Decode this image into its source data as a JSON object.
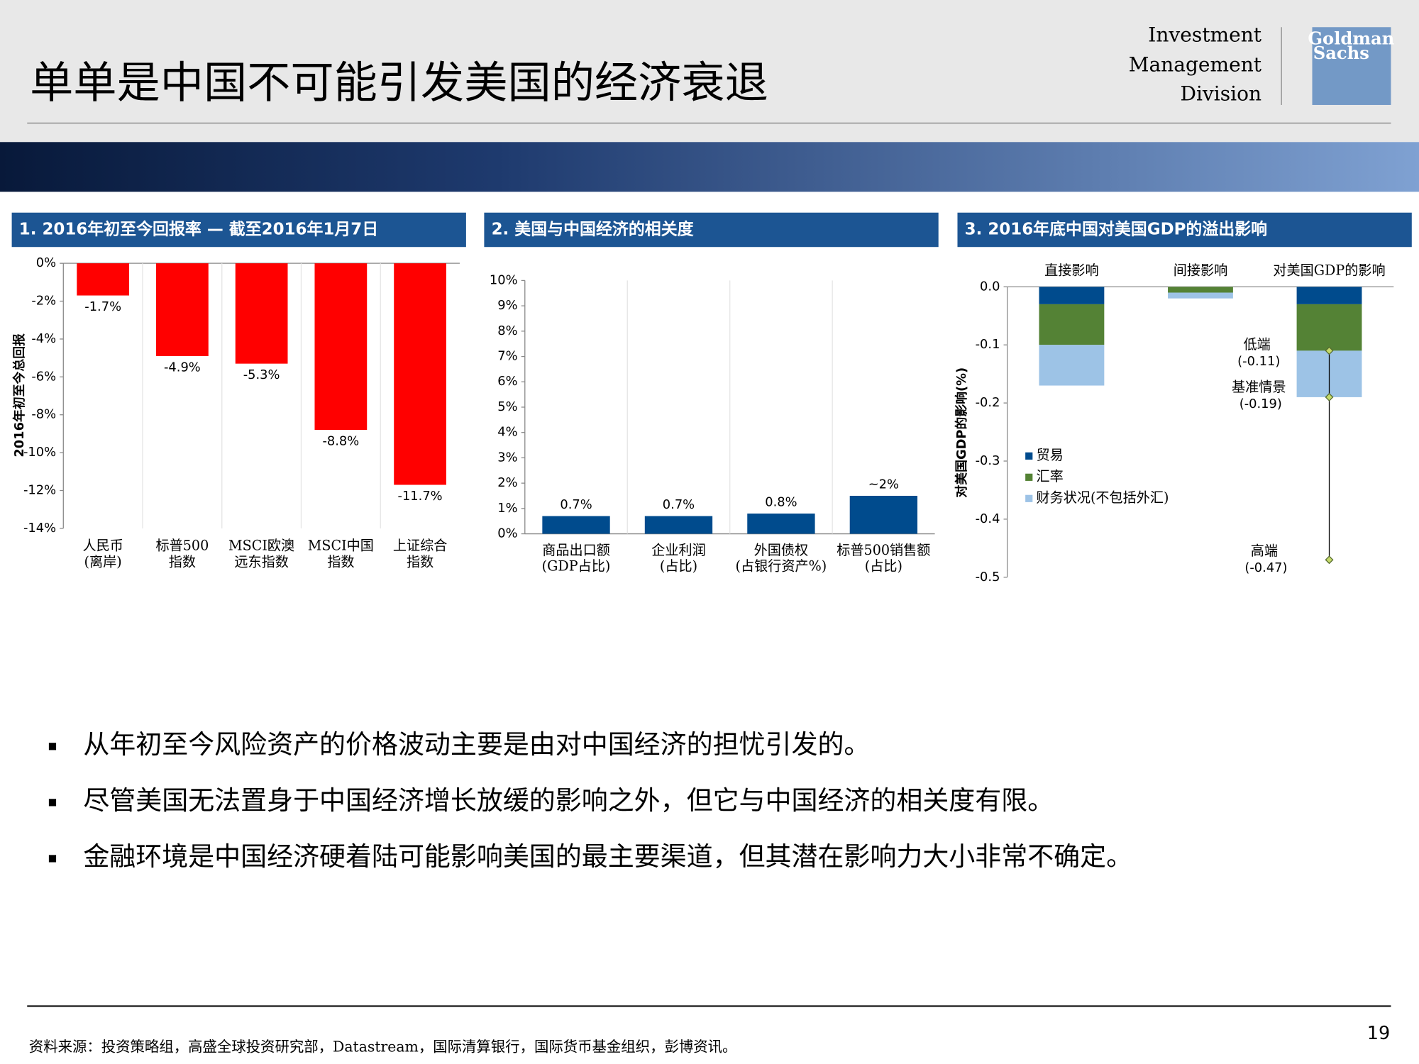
{
  "header": {
    "title": "单单是中国不可能引发美国的经济衰退",
    "division": [
      "Investment",
      "Management",
      "Division"
    ],
    "logo": [
      "Goldman",
      "Sachs"
    ]
  },
  "chart_data": [
    {
      "type": "bar",
      "title": "1. 2016年初至今回报率 — 截至2016年1月7日",
      "y_label": "2016年初至今总回报",
      "categories": [
        [
          "人民币",
          "(离岸)"
        ],
        [
          "标普500",
          "指数"
        ],
        [
          "MSCI欧澳",
          "远东指数"
        ],
        [
          "MSCI中国",
          "指数"
        ],
        [
          "上证综合",
          "指数"
        ]
      ],
      "values": [
        -1.7,
        -4.9,
        -5.3,
        -8.8,
        -11.7
      ],
      "value_labels": [
        "-1.7%",
        "-4.9%",
        "-5.3%",
        "-8.8%",
        "-11.7%"
      ],
      "color": "#ff0000",
      "ylim": [
        -14,
        0
      ],
      "yticks": [
        {
          "value": 0,
          "label": "0%"
        },
        {
          "value": -2,
          "label": "-2%"
        },
        {
          "value": -4,
          "label": "-4%"
        },
        {
          "value": -6,
          "label": "-6%"
        },
        {
          "value": -8,
          "label": "-8%"
        },
        {
          "value": -10,
          "label": "-10%"
        },
        {
          "value": -12,
          "label": "-12%"
        },
        {
          "value": -14,
          "label": "-14%"
        }
      ],
      "grid": false
    },
    {
      "type": "bar",
      "title": "2. 美国与中国经济的相关度",
      "categories": [
        [
          "商品出口额",
          "(GDP占比)"
        ],
        [
          "企业利润",
          "(占比)"
        ],
        [
          "外国债权",
          "(占银行资产%)"
        ],
        [
          "标普500销售额",
          "(占比)"
        ]
      ],
      "values": [
        0.7,
        0.7,
        0.8,
        1.5
      ],
      "value_labels": [
        "0.7%",
        "0.7%",
        "0.8%",
        "~2%"
      ],
      "color": "#004b8d",
      "ylim": [
        0,
        10
      ],
      "yticks": [
        {
          "value": 0,
          "label": "0%"
        },
        {
          "value": 1,
          "label": "1%"
        },
        {
          "value": 2,
          "label": "2%"
        },
        {
          "value": 3,
          "label": "3%"
        },
        {
          "value": 4,
          "label": "4%"
        },
        {
          "value": 5,
          "label": "5%"
        },
        {
          "value": 6,
          "label": "6%"
        },
        {
          "value": 7,
          "label": "7%"
        },
        {
          "value": 8,
          "label": "8%"
        },
        {
          "value": 9,
          "label": "9%"
        },
        {
          "value": 10,
          "label": "10%"
        }
      ],
      "grid": false
    },
    {
      "type": "stacked_bar",
      "title": "3. 2016年底中国对美国GDP的溢出影响",
      "y_label": "对美国GDP的影响(%)",
      "categories": [
        "直接影响",
        "间接影响",
        "对美国GDP的影响"
      ],
      "series": [
        {
          "name": "贸易",
          "color": "#004b8d",
          "values": [
            -0.03,
            null,
            -0.03
          ]
        },
        {
          "name": "汇率",
          "color": "#548235",
          "values": [
            -0.07,
            -0.01,
            -0.08
          ]
        },
        {
          "name": "财务状况(不包括外汇)",
          "color": "#9dc3e6",
          "values": [
            -0.07,
            -0.01,
            -0.08
          ]
        }
      ],
      "range": {
        "names": [
          "低端",
          "基准情景",
          "高端"
        ],
        "values": [
          -0.11,
          -0.19,
          -0.47
        ],
        "value_labels": [
          "(-0.11)",
          "(-0.19)",
          "(-0.47)"
        ],
        "color": "#000000"
      },
      "ylim": [
        -0.5,
        0
      ],
      "yticks": [
        {
          "value": 0,
          "label": "0.0"
        },
        -0.1,
        -0.2,
        -0.3,
        -0.4,
        -0.5
      ],
      "grid": false
    }
  ],
  "bullets": [
    "从年初至今风险资产的价格波动主要是由对中国经济的担忧引发的。",
    "尽管美国无法置身于中国经济增长放缓的影响之外，但它与中国经济的相关度有限。",
    "金融环境是中国经济硬着陆可能影响美国的最主要渠道，但其潜在影响力大小非常不确定。"
  ],
  "footer": {
    "source": "资料来源：投资策略组，高盛全球投资研究部，Datastream，国际清算银行，国际货币基金组织，彭博资讯。",
    "page": "19"
  }
}
